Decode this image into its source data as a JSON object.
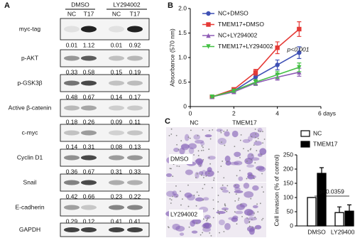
{
  "panel_labels": {
    "a": "A",
    "b": "B",
    "c": "C"
  },
  "blot": {
    "groups": [
      "DMSO",
      "LY294002"
    ],
    "lanes": [
      "NC",
      "T17",
      "NC",
      "T17"
    ],
    "rows": [
      {
        "label": "myc-tag",
        "values": [
          0.01,
          1.12,
          0.01,
          0.92
        ]
      },
      {
        "label": "p-AKT",
        "values": [
          0.33,
          0.58,
          0.15,
          0.19
        ]
      },
      {
        "label": "p-GSK3β",
        "values": [
          0.48,
          0.67,
          0.14,
          0.17
        ]
      },
      {
        "label": "Active β-catenin",
        "values": [
          0.18,
          0.26,
          0.09,
          0.11
        ]
      },
      {
        "label": "c-myc",
        "values": [
          0.14,
          0.31,
          0.08,
          0.13
        ]
      },
      {
        "label": "Cyclin D1",
        "values": [
          0.36,
          0.67,
          0.31,
          0.33
        ]
      },
      {
        "label": "Snail",
        "values": [
          0.42,
          0.66,
          0.23,
          0.22
        ]
      },
      {
        "label": "E-cadherin",
        "values": [
          0.29,
          0.12,
          0.41,
          0.41
        ]
      },
      {
        "label": "GAPDH"
      }
    ]
  },
  "micrographs": {
    "columns": [
      "NC",
      "TMEM17"
    ],
    "rows": [
      "DMSO",
      "LY294002"
    ]
  },
  "chart_data": [
    {
      "type": "line",
      "ylabel": "Absorbance (570 nm)",
      "x": [
        1,
        2,
        3,
        4,
        5
      ],
      "xlim": [
        0,
        6
      ],
      "xticks": [
        0,
        2,
        4,
        {
          "value": 6,
          "label": "6 days"
        }
      ],
      "ylim": [
        0,
        2
      ],
      "yticks": [
        0,
        0.5,
        {
          "value": 1,
          "label": "1.0"
        },
        1.5,
        {
          "value": 2,
          "label": "2.0"
        }
      ],
      "legend": "upper-left",
      "annotation": "p<0.001",
      "series": [
        {
          "name": "NC+DMSO",
          "color": "#3f51b5",
          "marker": "circle",
          "values": [
            0.2,
            0.32,
            0.6,
            0.85,
            1.1
          ],
          "errors": [
            0.02,
            0.03,
            0.05,
            0.1,
            0.12
          ]
        },
        {
          "name": "TMEM17+DMSO",
          "color": "#e53935",
          "marker": "square",
          "values": [
            0.2,
            0.35,
            0.7,
            1.2,
            1.58
          ],
          "errors": [
            0.02,
            0.03,
            0.06,
            0.12,
            0.15
          ]
        },
        {
          "name": "NC+LY294002",
          "color": "#8e5bb5",
          "marker": "triangle",
          "values": [
            0.2,
            0.3,
            0.48,
            0.6,
            0.7
          ],
          "errors": [
            0.02,
            0.03,
            0.05,
            0.06,
            0.08
          ]
        },
        {
          "name": "TMEM17+LY294002",
          "color": "#43c043",
          "marker": "triangle-down",
          "values": [
            0.2,
            0.32,
            0.5,
            0.65,
            0.8
          ],
          "errors": [
            0.02,
            0.03,
            0.05,
            0.07,
            0.09
          ]
        }
      ]
    },
    {
      "type": "bar",
      "ylabel": "Cell invasion (% of control)",
      "categories": [
        "DMSO",
        "LY294002"
      ],
      "ylim": [
        0,
        250
      ],
      "yticks": [
        0,
        50,
        100,
        150,
        200,
        250
      ],
      "legend": "upper-right",
      "annotation": "p=0.0359",
      "series": [
        {
          "name": "NC",
          "color": "#ffffff",
          "values": [
            100,
            47
          ],
          "errors": [
            0,
            20
          ]
        },
        {
          "name": "TMEM17",
          "color": "#000000",
          "values": [
            185,
            52
          ],
          "errors": [
            20,
            22
          ]
        }
      ]
    }
  ]
}
